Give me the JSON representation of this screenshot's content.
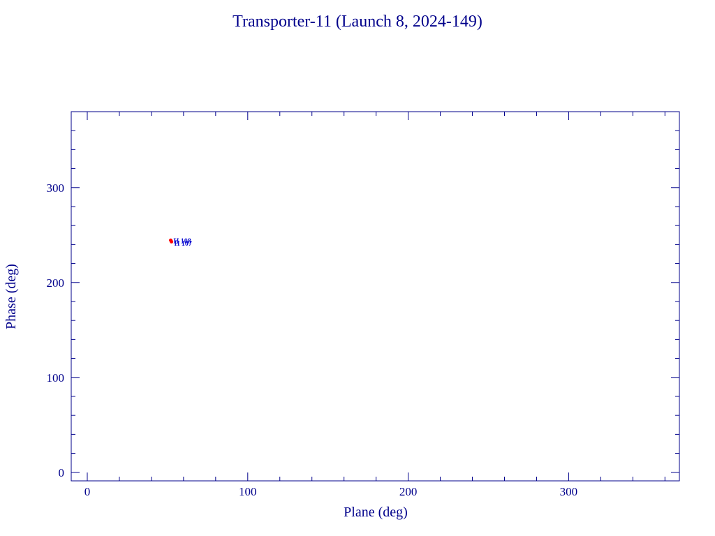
{
  "chart_data": {
    "type": "scatter",
    "title": "Transporter-11 (Launch 8, 2024-149)",
    "xlabel": "Plane (deg)",
    "ylabel": "Phase (deg)",
    "xlim": [
      -10,
      369
    ],
    "ylim": [
      -9,
      380
    ],
    "xticks": [
      0,
      100,
      200,
      300
    ],
    "yticks": [
      0,
      100,
      200,
      300
    ],
    "xminorticks": [
      20,
      40,
      60,
      80,
      120,
      140,
      160,
      180,
      220,
      240,
      260,
      280,
      320,
      340,
      360
    ],
    "yminorticks": [
      20,
      40,
      60,
      80,
      120,
      140,
      160,
      180,
      220,
      240,
      260,
      280,
      320,
      340,
      360
    ],
    "axis_color": "#00008b",
    "label_color": "#1010d0",
    "series": [
      {
        "color": "#ff0000",
        "x": [
          52,
          52.5
        ],
        "values": [
          244.5,
          243
        ],
        "point_labels": [
          "H 108",
          "H 107"
        ]
      }
    ]
  }
}
